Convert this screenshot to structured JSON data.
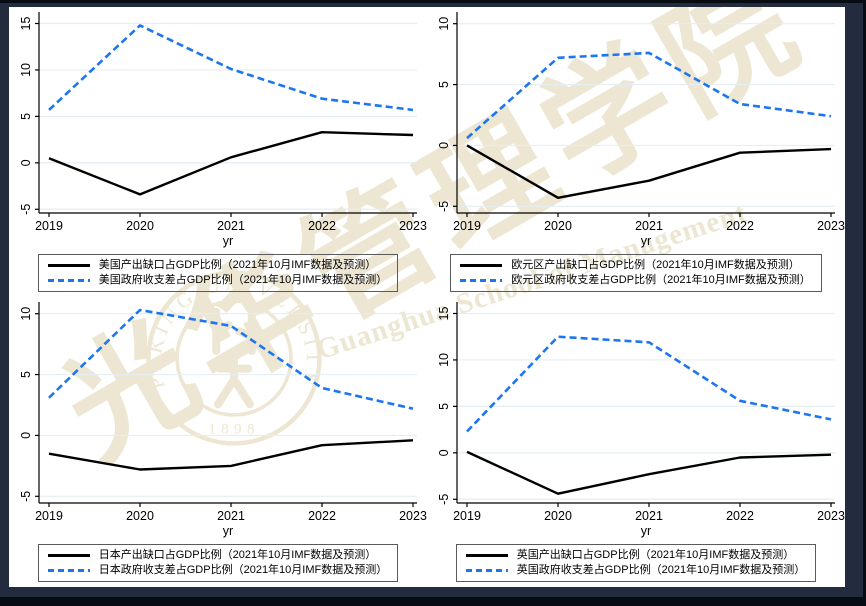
{
  "colors": {
    "frame_navy": "#232c3e",
    "frame_black_strip": "#070b12",
    "panel_background": "#ffffff",
    "line_solid": "#000000",
    "line_dashed": "#1d76f0",
    "grid": "#e4eef3",
    "watermark": "#ede6d2",
    "axis": "#000000",
    "legend_border": "#5a5a5a"
  },
  "watermark": {
    "chinese_calligraphy": "光华管理学院",
    "english": "Guanghua School of Management",
    "seal_ring_text": "PEKING UNIVERSITY",
    "seal_year": "1898"
  },
  "chart_data": [
    {
      "type": "line",
      "region": "美国",
      "x": [
        2019,
        2020,
        2021,
        2022,
        2023
      ],
      "xlabel": "yr",
      "ylim": [
        -5.4,
        15.7
      ],
      "yticks": [
        -5,
        0,
        5,
        10,
        15
      ],
      "grid": true,
      "legend_position": "bottom",
      "series": [
        {
          "name": "美国产出缺口占GDP比例（2021年10月IMF数据及预测）",
          "color": "line_solid",
          "dash": false,
          "values": [
            0.5,
            -3.4,
            0.6,
            3.3,
            3.0
          ]
        },
        {
          "name": "美国政府收支差占GDP比例（2021年10月IMF数据及预测）",
          "color": "line_dashed",
          "dash": true,
          "values": [
            5.7,
            14.8,
            10.1,
            6.9,
            5.7
          ]
        }
      ]
    },
    {
      "type": "line",
      "region": "欧元区",
      "x": [
        2019,
        2020,
        2021,
        2022,
        2023
      ],
      "xlabel": "yr",
      "ylim": [
        -5.55,
        10.55
      ],
      "yticks": [
        -5,
        0,
        5,
        10
      ],
      "grid": true,
      "legend_position": "bottom",
      "series": [
        {
          "name": "欧元区产出缺口占GDP比例（2021年10月IMF数据及预测）",
          "color": "line_solid",
          "dash": false,
          "values": [
            0.0,
            -4.3,
            -2.9,
            -0.6,
            -0.3
          ]
        },
        {
          "name": "欧元区政府收支差占GDP比例（2021年10月IMF数据及预测）",
          "color": "line_dashed",
          "dash": true,
          "values": [
            0.6,
            7.2,
            7.6,
            3.4,
            2.4
          ]
        }
      ]
    },
    {
      "type": "line",
      "region": "日本",
      "x": [
        2019,
        2020,
        2021,
        2022,
        2023
      ],
      "xlabel": "yr",
      "ylim": [
        -5.55,
        10.55
      ],
      "yticks": [
        -5,
        0,
        5,
        10
      ],
      "grid": true,
      "legend_position": "bottom",
      "series": [
        {
          "name": "日本产出缺口占GDP比例（2021年10月IMF数据及预测）",
          "color": "line_solid",
          "dash": false,
          "values": [
            -1.5,
            -2.8,
            -2.5,
            -0.8,
            -0.4
          ]
        },
        {
          "name": "日本政府收支差占GDP比例（2021年10月IMF数据及预测）",
          "color": "line_dashed",
          "dash": true,
          "values": [
            3.1,
            10.3,
            9.0,
            3.9,
            2.2
          ]
        }
      ]
    },
    {
      "type": "line",
      "region": "英国",
      "x": [
        2019,
        2020,
        2021,
        2022,
        2023
      ],
      "xlabel": "yr",
      "ylim": [
        -5.4,
        15.7
      ],
      "yticks": [
        -5,
        0,
        5,
        10,
        15
      ],
      "grid": true,
      "legend_position": "bottom",
      "series": [
        {
          "name": "英国产出缺口占GDP比例（2021年10月IMF数据及预测）",
          "color": "line_solid",
          "dash": false,
          "values": [
            0.1,
            -4.4,
            -2.3,
            -0.5,
            -0.2
          ]
        },
        {
          "name": "英国政府收支差占GDP比例（2021年10月IMF数据及预测）",
          "color": "line_dashed",
          "dash": true,
          "values": [
            2.3,
            12.5,
            11.9,
            5.6,
            3.6
          ]
        }
      ]
    }
  ]
}
